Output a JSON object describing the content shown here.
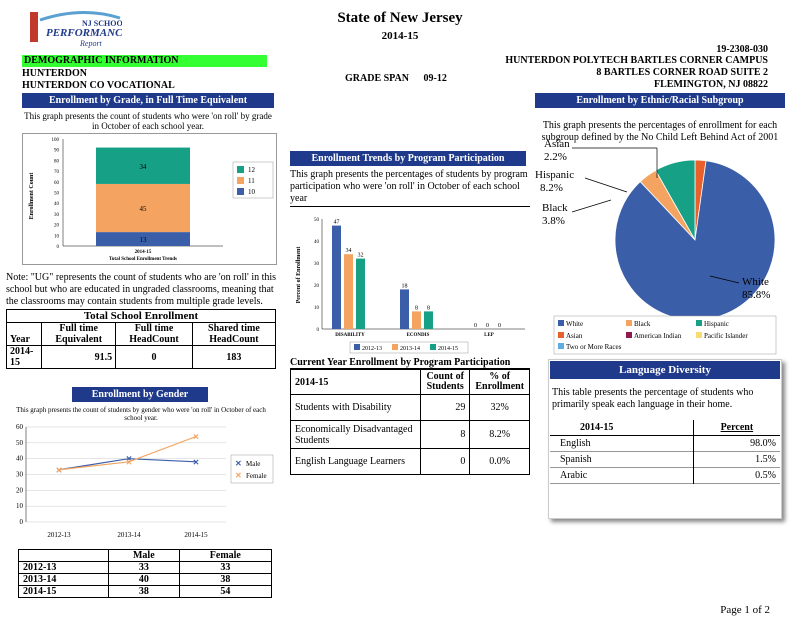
{
  "logo": {
    "line1": "NJ SCHOOL",
    "line2": "PERFORMANCE",
    "line3": "Report"
  },
  "header": {
    "title": "State of New Jersey",
    "year": "2014-15",
    "school_code": "19-2308-030",
    "demographic_label": "DEMOGRAPHIC INFORMATION",
    "county": "HUNTERDON",
    "district": "HUNTERDON CO VOCATIONAL",
    "grade_span_label": "GRADE SPAN",
    "grade_span": "09-12",
    "school_name": "HUNTERDON POLYTECH BARTLES CORNER CAMPUS",
    "address1": "8 BARTLES CORNER ROAD SUITE 2",
    "address2": "FLEMINGTON, NJ 08822"
  },
  "enroll_grade": {
    "title": "Enrollment by Grade, in Full Time Equivalent",
    "desc": "This graph presents the count of students who were 'on roll' by grade in October of each school year.",
    "ylabel": "Enrollment Count",
    "xlabel": "Total School Enrollment Trends",
    "category": "2014-15",
    "yticks": [
      "0",
      "10",
      "20",
      "30",
      "40",
      "50",
      "60",
      "70",
      "80",
      "90",
      "100"
    ],
    "legend": [
      "12",
      "11",
      "10"
    ],
    "seg_labels": [
      "34",
      "45",
      "13"
    ]
  },
  "note": "Note: \"UG\" represents the count of students who are 'on roll' in this school but who are educated in ungraded classrooms, meaning that the classrooms may contain students from multiple grade levels.",
  "total_enroll": {
    "title": "Total School Enrollment",
    "headers": [
      "Year",
      "Full time Equivalent",
      "Full time HeadCount",
      "Shared time HeadCount"
    ],
    "row": [
      "2014-15",
      "91.5",
      "0",
      "183"
    ]
  },
  "enroll_gender": {
    "title": "Enrollment by Gender",
    "desc": "This graph presents the count of students by gender who were 'on roll' in October of each school year.",
    "legend": [
      "Male",
      "Female"
    ],
    "table_headers": [
      "",
      "Male",
      "Female"
    ],
    "rows": [
      [
        "2012-13",
        "33",
        "33"
      ],
      [
        "2013-14",
        "40",
        "38"
      ],
      [
        "2014-15",
        "38",
        "54"
      ]
    ]
  },
  "program_trend": {
    "title": "Enrollment Trends by Program Participation",
    "desc": "This graph presents the percentages of students by program participation who were 'on roll' in October of each school year",
    "ylabel": "Percent of Enrollment",
    "categories": [
      "DISABILITY",
      "ECONDIS",
      "LEP"
    ],
    "legend": [
      "2012-13",
      "2013-14",
      "2014-15"
    ]
  },
  "program_table": {
    "title": "Current Year Enrollment by Program Participation",
    "headers": [
      "2014-15",
      "Count of Students",
      "% of Enrollment"
    ],
    "rows": [
      [
        "Students with Disability",
        "29",
        "32%"
      ],
      [
        "Economically Disadvantaged Students",
        "8",
        "8.2%"
      ],
      [
        "English Language Learners",
        "0",
        "0.0%"
      ]
    ]
  },
  "ethnic": {
    "title": "Enrollment by Ethnic/Racial Subgroup",
    "desc": "This graph presents the percentages of enrollment for each subgroup defined by the No Child Left Behind Act of 2001",
    "labels": [
      {
        "name": "Asian",
        "pct": "2.2%"
      },
      {
        "name": "Hispanic",
        "pct": "8.2%"
      },
      {
        "name": "Black",
        "pct": "3.8%"
      },
      {
        "name": "White",
        "pct": "85.8%"
      }
    ],
    "legend": [
      "White",
      "Black",
      "Hispanic",
      "Asian",
      "American Indian",
      "Pacific Islander",
      "Two or More Races"
    ]
  },
  "language": {
    "title": "Language Diversity",
    "desc": "This table presents the percentage of students who primarily speak each language in their home.",
    "headers": [
      "2014-15",
      "Percent"
    ],
    "rows": [
      [
        "English",
        "98.0%"
      ],
      [
        "Spanish",
        "1.5%"
      ],
      [
        "Arabic",
        "0.5%"
      ]
    ]
  },
  "footer": "Page 1 of 2",
  "chart_data": [
    {
      "type": "bar",
      "title": "Enrollment by Grade, in Full Time Equivalent",
      "categories": [
        "2014-15"
      ],
      "stacked": true,
      "series": [
        {
          "name": "10",
          "values": [
            13
          ],
          "color": "#3b5ea8"
        },
        {
          "name": "11",
          "values": [
            45
          ],
          "color": "#f4a460"
        },
        {
          "name": "12",
          "values": [
            34
          ],
          "color": "#16a085"
        }
      ],
      "ylim": [
        0,
        100
      ],
      "xlabel": "Total School Enrollment Trends",
      "ylabel": "Enrollment Count"
    },
    {
      "type": "bar",
      "title": "Enrollment Trends by Program Participation",
      "categories": [
        "DISABILITY",
        "ECONDIS",
        "LEP"
      ],
      "series": [
        {
          "name": "2012-13",
          "values": [
            47,
            18,
            0
          ],
          "color": "#3b5ea8"
        },
        {
          "name": "2013-14",
          "values": [
            34,
            8,
            0
          ],
          "color": "#f4a460"
        },
        {
          "name": "2014-15",
          "values": [
            32,
            8,
            0
          ],
          "color": "#16a085"
        }
      ],
      "ylim": [
        0,
        50
      ],
      "yticks": [
        0,
        10,
        20,
        30,
        40,
        50
      ],
      "ylabel": "Percent of Enrollment"
    },
    {
      "type": "line",
      "title": "Enrollment by Gender",
      "x": [
        "2012-13",
        "2013-14",
        "2014-15"
      ],
      "series": [
        {
          "name": "Male",
          "values": [
            33,
            40,
            38
          ],
          "color": "#3b5ea8"
        },
        {
          "name": "Female",
          "values": [
            33,
            38,
            54
          ],
          "color": "#f4a460"
        }
      ],
      "ylim": [
        0,
        60
      ],
      "yticks": [
        0,
        10,
        20,
        30,
        40,
        50,
        60
      ]
    },
    {
      "type": "pie",
      "title": "Enrollment by Ethnic/Racial Subgroup",
      "labels": [
        "White",
        "Black",
        "Hispanic",
        "Asian"
      ],
      "values": [
        85.8,
        3.8,
        8.2,
        2.2
      ],
      "colors": [
        "#3b5ea8",
        "#f4a460",
        "#16a085",
        "#e8612c"
      ]
    }
  ]
}
